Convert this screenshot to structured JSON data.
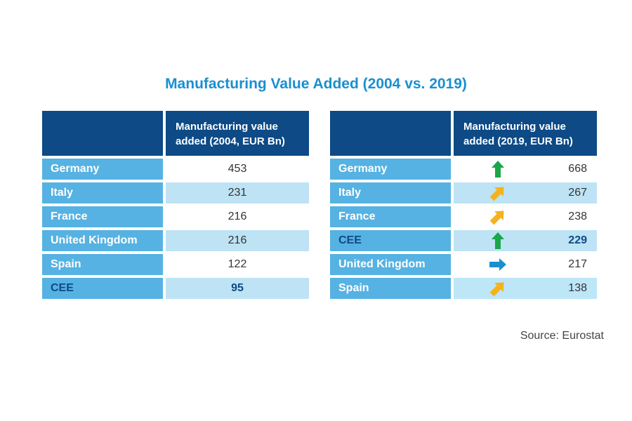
{
  "chart_data": [
    {
      "type": "table",
      "title": "Manufacturing Value Added (2004 vs. 2019)",
      "header": "Manufacturing value added (2004, EUR Bn)",
      "rows": [
        {
          "country": "Germany",
          "value": "453"
        },
        {
          "country": "Italy",
          "value": "231"
        },
        {
          "country": "France",
          "value": "216"
        },
        {
          "country": "United Kingdom",
          "value": "216"
        },
        {
          "country": "Spain",
          "value": "122"
        },
        {
          "country": "CEE",
          "value": "95"
        }
      ]
    },
    {
      "type": "table",
      "header": "Manufacturing value added (2019, EUR Bn)",
      "rows": [
        {
          "country": "Germany",
          "value": "668",
          "trend": "up",
          "trend_color": "#1aa64a"
        },
        {
          "country": "Italy",
          "value": "267",
          "trend": "up-right",
          "trend_color": "#f5b21c"
        },
        {
          "country": "France",
          "value": "238",
          "trend": "up-right",
          "trend_color": "#f5b21c"
        },
        {
          "country": "CEE",
          "value": "229",
          "trend": "up",
          "trend_color": "#1aa64a"
        },
        {
          "country": "United Kingdom",
          "value": "217",
          "trend": "right",
          "trend_color": "#1a8fd0"
        },
        {
          "country": "Spain",
          "value": "138",
          "trend": "up-right",
          "trend_color": "#f5b21c"
        }
      ]
    }
  ],
  "source": "Source: Eurostat"
}
